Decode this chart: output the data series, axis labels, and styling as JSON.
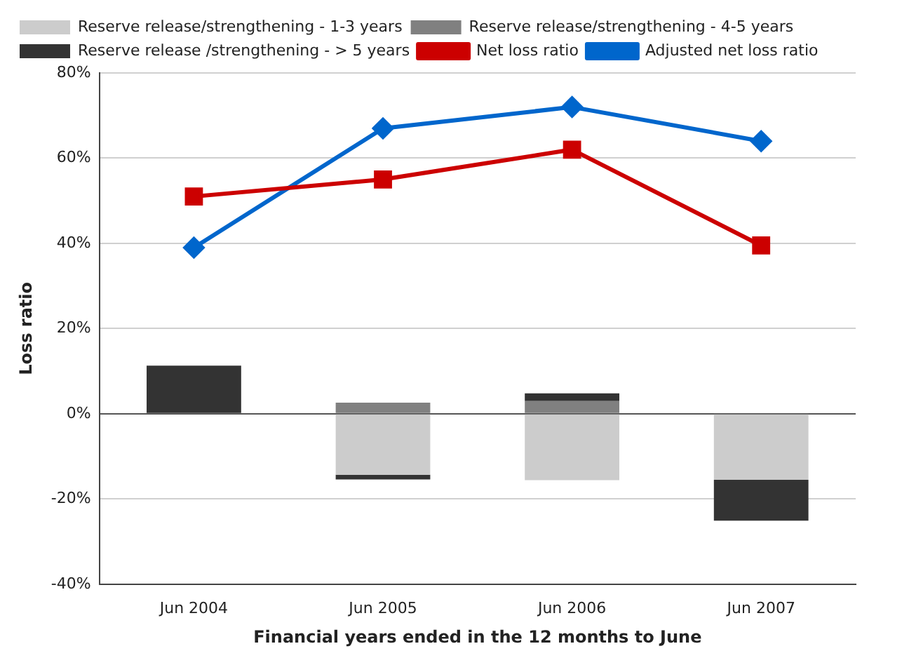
{
  "chart_data": {
    "type": "bar",
    "stacked": true,
    "xlabel": "Financial years ended in the 12 months to June",
    "ylabel": "Loss ratio",
    "categories": [
      "Jun 2004",
      "Jun 2005",
      "Jun 2006",
      "Jun 2007"
    ],
    "series": [
      {
        "name": "Reserve release/strengthening - 1-3 years",
        "color": "#cccccc",
        "values": [
          null,
          -14.3,
          -15.6,
          -15.5
        ]
      },
      {
        "name": "Reserve release/strengthening - 4-5 years",
        "color": "#808080",
        "values": [
          0,
          2.6,
          3.0,
          0
        ]
      },
      {
        "name": "Reserve release /strengthening - > 5 years",
        "color": "#333333",
        "values": [
          11.3,
          -1.1,
          1.8,
          -9.6
        ]
      },
      {
        "name": "Net loss ratio",
        "type": "line",
        "color": "#cc0000",
        "marker": "square",
        "values": [
          51,
          55,
          62,
          39.5
        ]
      },
      {
        "name": "Adjusted net loss ratio",
        "type": "line",
        "color": "#0066cc",
        "marker": "diamond",
        "values": [
          39,
          67,
          72,
          64
        ]
      }
    ],
    "ylim": [
      -40,
      80
    ],
    "yticks": [
      {
        "value": -40,
        "label": "-40%"
      },
      {
        "value": -20,
        "label": "-20%"
      },
      {
        "value": 0,
        "label": "0%"
      },
      {
        "value": 20,
        "label": "20%"
      },
      {
        "value": 40,
        "label": "40%"
      },
      {
        "value": 60,
        "label": "60%"
      },
      {
        "value": 80,
        "label": "80%"
      }
    ],
    "grid": "y",
    "legend": "top"
  }
}
